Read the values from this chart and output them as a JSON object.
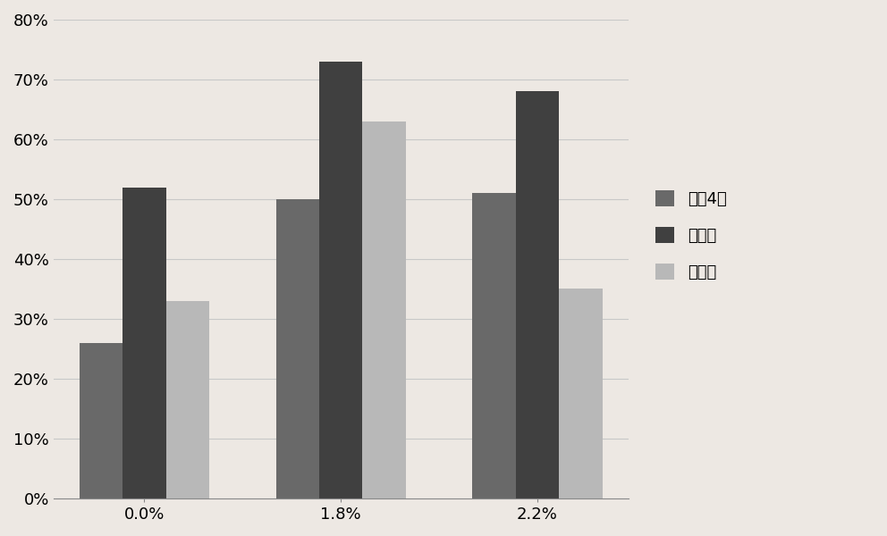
{
  "categories": [
    "0.0%",
    "1.8%",
    "2.2%"
  ],
  "series": [
    {
      "label": "宁粳4号",
      "values": [
        0.26,
        0.5,
        0.51
      ],
      "color": "#696969"
    },
    {
      "label": "日本晴",
      "values": [
        0.52,
        0.73,
        0.68
      ],
      "color": "#404040"
    },
    {
      "label": "扎西玛",
      "values": [
        0.33,
        0.63,
        0.35
      ],
      "color": "#b8b8b8"
    }
  ],
  "ylim": [
    0,
    0.8
  ],
  "yticks": [
    0.0,
    0.1,
    0.2,
    0.3,
    0.4,
    0.5,
    0.6,
    0.7,
    0.8
  ],
  "ytick_labels": [
    "0%",
    "10%",
    "20%",
    "30%",
    "40%",
    "50%",
    "60%",
    "70%",
    "80%"
  ],
  "bar_width": 0.22,
  "background_color": "#ede8e3",
  "plot_bg_color": "#ede8e3",
  "border_color": "#888888",
  "grid_color": "#c8c8c8",
  "fontsize": 13
}
